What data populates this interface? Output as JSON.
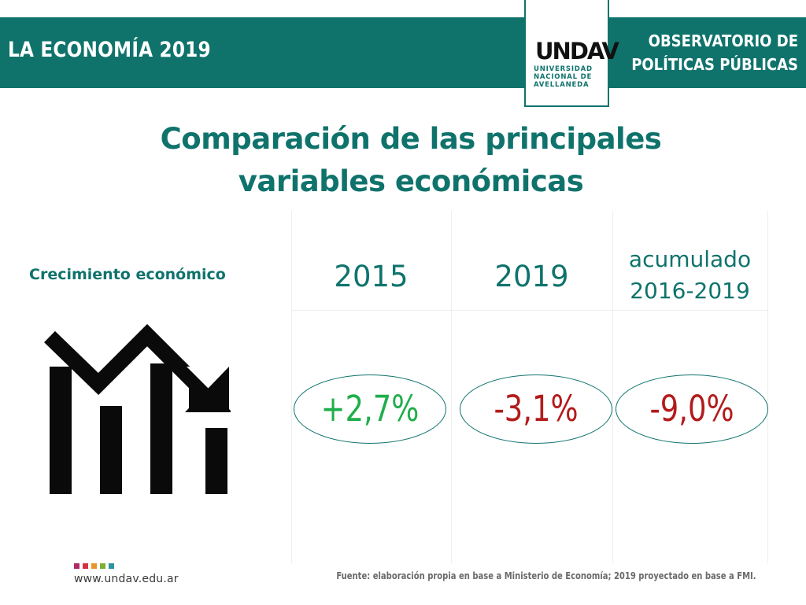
{
  "header": {
    "title": "LA ECONOMÍA 2019",
    "right_line1": "OBSERVATORIO DE",
    "right_line2": "POLÍTICAS PÚBLICAS",
    "logo_mark": "UNDAV",
    "logo_sub_line1": "UNIVERSIDAD",
    "logo_sub_line2": "NACIONAL DE",
    "logo_sub_line3": "AVELLANEDA",
    "color": "#0f736c"
  },
  "main_title": {
    "line1": "Comparación de las principales",
    "line2": "variables económicas"
  },
  "table": {
    "row_label": "Crecimiento económico",
    "row_icon": "declining-bar-chart-icon",
    "columns": [
      {
        "header": "2015",
        "value": "+2,7%",
        "value_color": "#1fae4b"
      },
      {
        "header": "2019",
        "value": "-3,1%",
        "value_color": "#b31b1b"
      },
      {
        "header_line1": "acumulado",
        "header_line2": "2016-2019",
        "value": "-9,0%",
        "value_color": "#b31b1b"
      }
    ]
  },
  "footer": {
    "url": "www.undav.edu.ar",
    "source": "Fuente: elaboración propia en base a Ministerio de Economía; 2019 proyectado en base a FMI.",
    "dot_colors": [
      "#b0296a",
      "#d4323e",
      "#e8962b",
      "#7fae34",
      "#2a94a0"
    ]
  }
}
